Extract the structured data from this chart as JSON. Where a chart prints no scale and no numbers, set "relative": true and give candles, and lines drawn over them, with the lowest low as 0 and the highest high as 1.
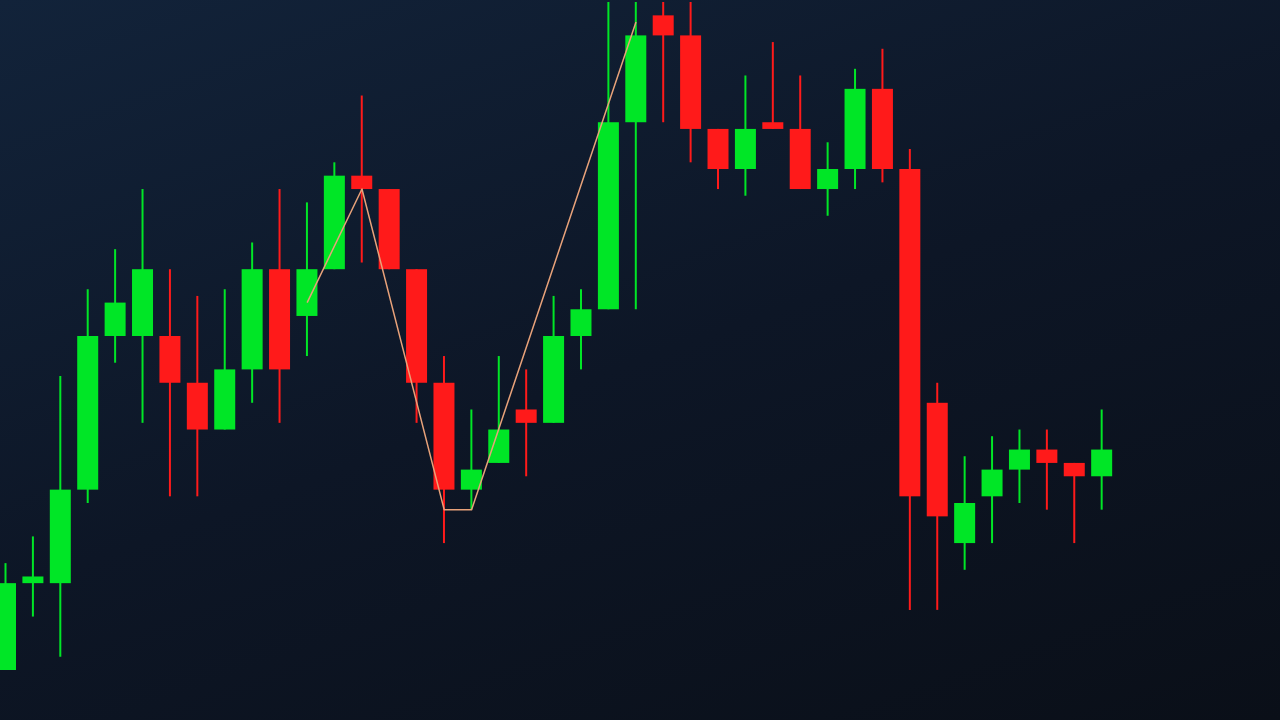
{
  "chart_data": {
    "type": "candlestick",
    "relative": true,
    "categories": [
      null,
      null,
      null,
      null,
      null,
      null,
      null,
      null,
      null,
      null,
      null,
      null,
      null,
      null,
      null,
      null,
      null,
      null,
      null,
      null,
      null,
      null,
      null,
      null,
      null,
      null,
      null,
      null,
      null,
      null,
      null,
      null,
      null,
      null,
      null,
      null,
      null,
      null,
      null,
      null,
      null,
      null,
      null,
      null,
      null,
      null,
      null
    ],
    "ohlc": [
      [
        0,
        0.16,
        0,
        0.13
      ],
      [
        0.13,
        0.2,
        0.08,
        0.14
      ],
      [
        0.13,
        0.44,
        0.02,
        0.27
      ],
      [
        0.27,
        0.57,
        0.25,
        0.5
      ],
      [
        0.5,
        0.63,
        0.46,
        0.55
      ],
      [
        0.5,
        0.72,
        0.37,
        0.6
      ],
      [
        0.5,
        0.6,
        0.26,
        0.43
      ],
      [
        0.43,
        0.56,
        0.26,
        0.36
      ],
      [
        0.36,
        0.57,
        0.36,
        0.45
      ],
      [
        0.45,
        0.64,
        0.4,
        0.6
      ],
      [
        0.6,
        0.72,
        0.37,
        0.45
      ],
      [
        0.53,
        0.7,
        0.47,
        0.6
      ],
      [
        0.6,
        0.76,
        0.6,
        0.74
      ],
      [
        0.74,
        0.86,
        0.61,
        0.72
      ],
      [
        0.72,
        0.72,
        0.6,
        0.6
      ],
      [
        0.6,
        0.6,
        0.37,
        0.43
      ],
      [
        0.43,
        0.47,
        0.19,
        0.27
      ],
      [
        0.27,
        0.39,
        0.24,
        0.3
      ],
      [
        0.31,
        0.47,
        0.31,
        0.36
      ],
      [
        0.39,
        0.45,
        0.29,
        0.37
      ],
      [
        0.37,
        0.56,
        0.37,
        0.5
      ],
      [
        0.5,
        0.57,
        0.45,
        0.54
      ],
      [
        0.54,
        1,
        0.54,
        0.82
      ],
      [
        0.82,
        1,
        0.54,
        0.95
      ],
      [
        0.98,
        1,
        0.82,
        0.95
      ],
      [
        0.95,
        1,
        0.76,
        0.81
      ],
      [
        0.81,
        0.81,
        0.72,
        0.75
      ],
      [
        0.75,
        0.89,
        0.71,
        0.81
      ],
      [
        0.82,
        0.94,
        0.81,
        0.81
      ],
      [
        0.81,
        0.89,
        0.72,
        0.72
      ],
      [
        0.72,
        0.79,
        0.68,
        0.75
      ],
      [
        0.75,
        0.9,
        0.72,
        0.87
      ],
      [
        0.87,
        0.93,
        0.73,
        0.75
      ],
      [
        0.75,
        0.78,
        0.09,
        0.26
      ],
      [
        0.4,
        0.43,
        0.09,
        0.23
      ],
      [
        0.19,
        0.32,
        0.15,
        0.25
      ],
      [
        0.26,
        0.35,
        0.19,
        0.3
      ],
      [
        0.3,
        0.36,
        0.25,
        0.33
      ],
      [
        0.33,
        0.36,
        0.24,
        0.31
      ],
      [
        0.31,
        0.31,
        0.19,
        0.29
      ],
      [
        0.29,
        0.39,
        0.24,
        0.33
      ],
      null,
      null,
      null,
      null,
      null,
      null
    ],
    "colors": [
      "#00e626",
      "#00e626",
      "#00e626",
      "#00e626",
      "#00e626",
      "#00e626",
      "#ff1a1a",
      "#ff1a1a",
      "#00e626",
      "#00e626",
      "#ff1a1a",
      "#00e626",
      "#00e626",
      "#ff1a1a",
      "#ff1a1a",
      "#ff1a1a",
      "#ff1a1a",
      "#00e626",
      "#00e626",
      "#ff1a1a",
      "#00e626",
      "#00e626",
      "#00e626",
      "#00e626",
      "#ff1a1a",
      "#ff1a1a",
      "#ff1a1a",
      "#00e626",
      "#ff1a1a",
      "#ff1a1a",
      "#00e626",
      "#00e626",
      "#ff1a1a",
      "#ff1a1a",
      "#ff1a1a",
      "#00e626",
      "#00e626",
      "#00e626",
      "#ff1a1a",
      "#ff1a1a",
      "#00e626",
      null,
      null,
      null,
      null,
      null,
      null
    ],
    "series": [
      {
        "type": "line",
        "color": "#e8a27a",
        "values": [
          null,
          null,
          null,
          null,
          null,
          null,
          null,
          null,
          null,
          null,
          null,
          0.55,
          null,
          0.72,
          null,
          null,
          0.24,
          0.24,
          null,
          null,
          null,
          null,
          null,
          0.97,
          null,
          null,
          null,
          null,
          null,
          null,
          null,
          null,
          null,
          null,
          null,
          null,
          null,
          null,
          null,
          null,
          null,
          null,
          null,
          null,
          null,
          null,
          null
        ]
      }
    ]
  }
}
